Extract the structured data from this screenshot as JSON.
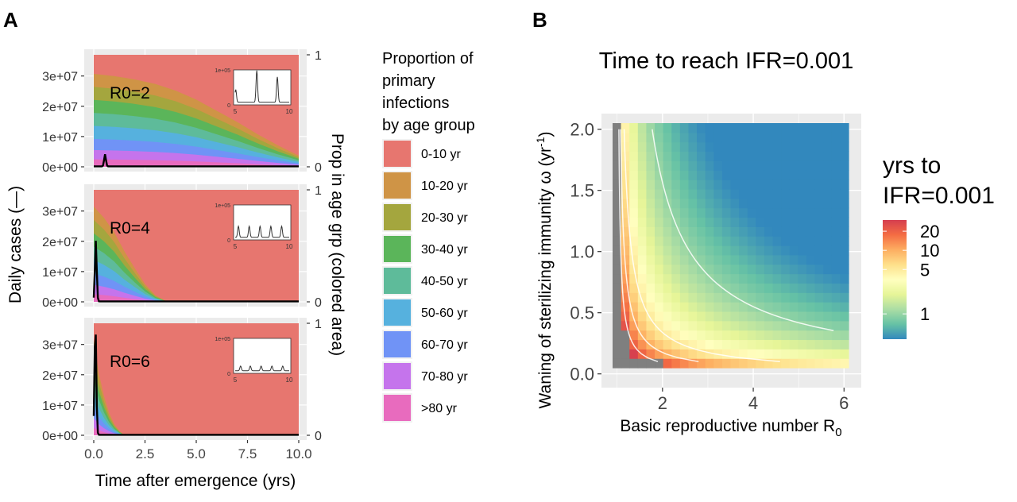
{
  "chart_data": [
    {
      "panel_label": "A",
      "type": "area",
      "subtype": "stacked-proportion-area-with-line",
      "xlabel": "Time after emergence (yrs)",
      "ylabel_left": "Daily cases (—)",
      "ylabel_right": "Prop in age grp (colored area)",
      "x_ticks": [
        "0.0",
        "2.5",
        "5.0",
        "7.5",
        "10.0"
      ],
      "x_tick_values": [
        0,
        2.5,
        5,
        7.5,
        10
      ],
      "xlim": [
        0,
        10
      ],
      "y_left_ticks": [
        "0e+00",
        "1e+07",
        "2e+07",
        "3e+07"
      ],
      "y_left_tick_values": [
        0,
        10000000,
        20000000,
        30000000
      ],
      "y_left_lim": [
        0,
        37000000
      ],
      "y_right_ticks": [
        "0",
        "1"
      ],
      "y_right_lim": [
        0,
        1
      ],
      "legend": {
        "title": [
          "Proportion of",
          "primary",
          "infections",
          "by age group"
        ],
        "placement": "right",
        "entries": [
          {
            "label": "0-10 yr",
            "color": "#E7766F"
          },
          {
            "label": "10-20 yr",
            "color": "#CF9446"
          },
          {
            "label": "20-30 yr",
            "color": "#A4A63E"
          },
          {
            "label": "30-40 yr",
            "color": "#5BB55A"
          },
          {
            "label": "40-50 yr",
            "color": "#5EBB9A"
          },
          {
            "label": "50-60 yr",
            "color": "#56B1DE"
          },
          {
            "label": "60-70 yr",
            "color": "#7093F6"
          },
          {
            "label": "70-80 yr",
            "color": "#C574EC"
          },
          {
            "label": ">80 yr",
            "color": "#E86BBE"
          }
        ]
      },
      "facets": [
        {
          "label": "R0=2",
          "proportion_time": [
            0,
            1,
            2,
            3,
            4,
            5,
            6,
            7,
            8,
            9,
            10
          ],
          "age_group_props_note": "cumulative boundary of each age band from top (0-10 yr band on top)",
          "non_0_10_fraction": [
            0.83,
            0.81,
            0.78,
            0.74,
            0.68,
            0.6,
            0.5,
            0.4,
            0.29,
            0.19,
            0.1
          ],
          "cases_peak_time": 0.55,
          "cases_peak": 4000000,
          "inset": {
            "x_ticks": [
              "5",
              "10"
            ],
            "y_ticks": [
              "0",
              "1e+05"
            ],
            "peak_times": [
              5.05,
              7.0,
              8.9
            ],
            "peak_values": [
              40000,
              100000,
              80000
            ]
          }
        },
        {
          "label": "R0=4",
          "proportion_time": [
            0,
            0.5,
            1,
            1.5,
            2,
            2.5,
            3,
            3.5,
            4
          ],
          "non_0_10_fraction": [
            0.85,
            0.75,
            0.62,
            0.45,
            0.3,
            0.16,
            0.06,
            0.01,
            0
          ],
          "cases_peak_time": 0.1,
          "cases_peak": 20000000,
          "inset": {
            "x_ticks": [
              "5",
              "10"
            ],
            "y_ticks": [
              "0",
              "1e+05"
            ],
            "peak_times": [
              5.3,
              6.3,
              7.3,
              8.3,
              9.3
            ],
            "peak_values": [
              35000,
              35000,
              35000,
              35000,
              35000
            ]
          }
        },
        {
          "label": "R0=6",
          "proportion_time": [
            0,
            0.25,
            0.5,
            0.75,
            1,
            1.25,
            1.5
          ],
          "non_0_10_fraction": [
            0.85,
            0.55,
            0.35,
            0.2,
            0.1,
            0.04,
            0
          ],
          "cases_peak_time": 0.08,
          "cases_peak": 37000000,
          "inset": {
            "x_ticks": [
              "5",
              "10"
            ],
            "y_ticks": [
              "0",
              "1e+05"
            ],
            "peak_times": [
              5.5,
              6.4,
              7.4,
              8.4,
              9.4
            ],
            "peak_values": [
              15000,
              15000,
              15000,
              15000,
              15000
            ]
          }
        }
      ]
    },
    {
      "panel_label": "B",
      "type": "heatmap",
      "title": "Time to reach IFR=0.001",
      "xlabel": "Basic reproductive number R",
      "xlabel_subscript": "0",
      "ylabel": "Waning of sterilizing immunity ω (yr",
      "ylabel_superscript": "-1",
      "ylabel_suffix": ")",
      "x_ticks": [
        "2",
        "4",
        "6"
      ],
      "x_tick_values": [
        2,
        4,
        6
      ],
      "xlim": [
        0.9,
        6.1
      ],
      "y_ticks": [
        "0.0",
        "0.5",
        "1.0",
        "1.5",
        "2.0"
      ],
      "y_tick_values": [
        0,
        0.5,
        1.0,
        1.5,
        2.0
      ],
      "ylim": [
        0.05,
        2.05
      ],
      "grid": true,
      "colorbar": {
        "title": [
          "yrs to",
          "IFR=0.001"
        ],
        "scale": "log",
        "ticks": [
          "20",
          "10",
          "5",
          "1"
        ],
        "tick_values": [
          20,
          10,
          5,
          1
        ],
        "range": [
          0.4,
          30
        ],
        "colors": [
          "#3288BD",
          "#66C2A5",
          "#ABDDA4",
          "#E6F598",
          "#FFFFBF",
          "#FEE08B",
          "#FDAE61",
          "#F46D43",
          "#D53E4F"
        ]
      },
      "na_color": "#7F7F7F",
      "contour_levels_yrs": [
        20,
        10,
        5,
        1
      ],
      "model_note": "value approx. c / ((R0-1) * omega), NA region where R0 < ~1.2 or very low omega"
    }
  ]
}
